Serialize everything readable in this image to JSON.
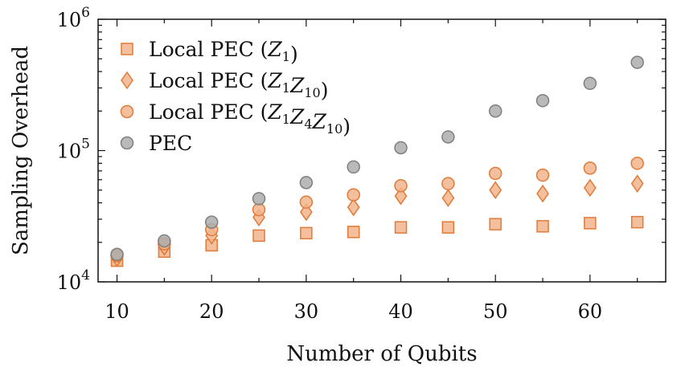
{
  "chart_data": {
    "type": "scatter",
    "xlabel": "Number of Qubits",
    "ylabel": "Sampling Overhead",
    "xlim": [
      8,
      68
    ],
    "ylim": [
      10000,
      1000000
    ],
    "yscale": "log",
    "grid": false,
    "legend_position": "top-left",
    "x_ticks": [
      10,
      20,
      30,
      40,
      50,
      60
    ],
    "x_tick_labels": [
      "10",
      "20",
      "30",
      "40",
      "50",
      "60"
    ],
    "y_ticks": [
      10000,
      100000,
      1000000
    ],
    "y_tick_labels": [
      {
        "base": "10",
        "exp": "4"
      },
      {
        "base": "10",
        "exp": "5"
      },
      {
        "base": "10",
        "exp": "6"
      }
    ],
    "x": [
      10,
      15,
      20,
      25,
      30,
      35,
      40,
      45,
      50,
      55,
      60,
      65
    ],
    "series": [
      {
        "name": "Local PEC (Z1)",
        "legend": {
          "prefix": "Local PEC (",
          "terms": [
            [
              "Z",
              "1"
            ]
          ],
          "suffix": ")"
        },
        "marker": "square",
        "color": "#E07B39",
        "fill": "#F2B48C",
        "values": [
          14500,
          17000,
          19000,
          22500,
          23500,
          24000,
          26000,
          26000,
          27500,
          26500,
          28000,
          28500
        ]
      },
      {
        "name": "Local PEC (Z1Z10)",
        "legend": {
          "prefix": "Local PEC (",
          "terms": [
            [
              "Z",
              "1"
            ],
            [
              "Z",
              "10"
            ]
          ],
          "suffix": ")"
        },
        "marker": "diamond",
        "color": "#E07B39",
        "fill": "#F2B48C",
        "values": [
          15200,
          18500,
          22500,
          31000,
          34000,
          37000,
          45000,
          43500,
          50000,
          47000,
          52000,
          56000
        ]
      },
      {
        "name": "Local PEC (Z1Z4Z10)",
        "legend": {
          "prefix": "Local PEC (",
          "terms": [
            [
              "Z",
              "1"
            ],
            [
              "Z",
              "4"
            ],
            [
              "Z",
              "10"
            ]
          ],
          "suffix": ")"
        },
        "marker": "circle",
        "color": "#E07B39",
        "fill": "#F2B48C",
        "values": [
          15800,
          19500,
          25000,
          35500,
          40500,
          46000,
          54000,
          56000,
          67000,
          65000,
          73500,
          80000
        ]
      },
      {
        "name": "PEC",
        "legend": {
          "prefix": "PEC",
          "terms": [],
          "suffix": ""
        },
        "marker": "circle",
        "color": "#7F7F7F",
        "fill": "#ADADAD",
        "values": [
          16200,
          20500,
          28500,
          43000,
          57000,
          75000,
          105000,
          127000,
          200000,
          240000,
          325000,
          470000
        ]
      }
    ]
  }
}
